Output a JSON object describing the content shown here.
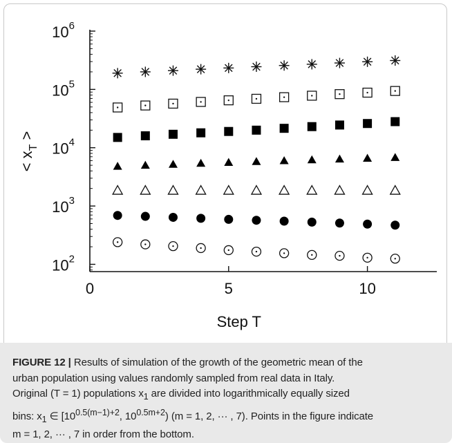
{
  "chart_data": {
    "type": "scatter",
    "xlabel": "Step T",
    "ylabel": "< x",
    "ylabel_subscript": "T",
    "ylabel_suffix": " >",
    "xlim": [
      0,
      12.5
    ],
    "ylim": [
      75,
      1000000
    ],
    "yscale": "log",
    "grid": false,
    "x_ticks": [
      0,
      5,
      10
    ],
    "x_tick_labels": [
      "0",
      "5",
      "10"
    ],
    "y_ticks": [
      100,
      1000,
      10000,
      100000,
      1000000
    ],
    "y_tick_labels": [
      {
        "base": "10",
        "exp": "2"
      },
      {
        "base": "10",
        "exp": "3"
      },
      {
        "base": "10",
        "exp": "4"
      },
      {
        "base": "10",
        "exp": "5"
      },
      {
        "base": "10",
        "exp": "6"
      }
    ],
    "x": [
      1,
      2,
      3,
      4,
      5,
      6,
      7,
      8,
      9,
      10,
      11
    ],
    "series": [
      {
        "marker": "dotted-circle",
        "values": [
          240,
          220,
          205,
          190,
          175,
          165,
          155,
          145,
          140,
          130,
          125
        ]
      },
      {
        "marker": "filled-circle",
        "values": [
          690,
          665,
          640,
          615,
          590,
          570,
          550,
          530,
          510,
          490,
          470
        ]
      },
      {
        "marker": "open-triangle",
        "values": [
          1850,
          1850,
          1850,
          1850,
          1850,
          1850,
          1850,
          1850,
          1850,
          1850,
          1850
        ]
      },
      {
        "marker": "filled-triangle",
        "values": [
          4800,
          5000,
          5200,
          5400,
          5600,
          5800,
          6000,
          6200,
          6400,
          6600,
          6800
        ]
      },
      {
        "marker": "filled-square",
        "values": [
          15000,
          16000,
          17000,
          18000,
          19000,
          20000,
          21500,
          23000,
          24500,
          26000,
          28000
        ]
      },
      {
        "marker": "dotted-square",
        "values": [
          49000,
          53000,
          57000,
          61000,
          65000,
          69000,
          73500,
          78000,
          83000,
          88000,
          94000
        ]
      },
      {
        "marker": "asterisk",
        "values": [
          190000,
          200000,
          210000,
          222000,
          233000,
          245000,
          257000,
          270000,
          284000,
          298000,
          313000
        ]
      }
    ]
  },
  "caption": {
    "label": "FIGURE 12 |",
    "line1": " Results of simulation of the growth of the geometric mean of the",
    "line2": "urban population using values randomly sampled from real data in Italy.",
    "line3": "Original (T = 1) populations x",
    "line3_sub": "1",
    "line3_rest": " are divided into logarithmically equally sized",
    "line4_start": "bins: x",
    "line4_sub": "1",
    "line4_mid": " ∈ [10",
    "line4_sup1": "0.5(m−1)+2",
    "line4_mid2": ", 10",
    "line4_sup2": "0.5m+2",
    "line4_end": ") (m = 1, 2, ··· , 7). Points in the figure indicate",
    "line5": "m = 1, 2, ··· , 7 in order from the bottom."
  }
}
